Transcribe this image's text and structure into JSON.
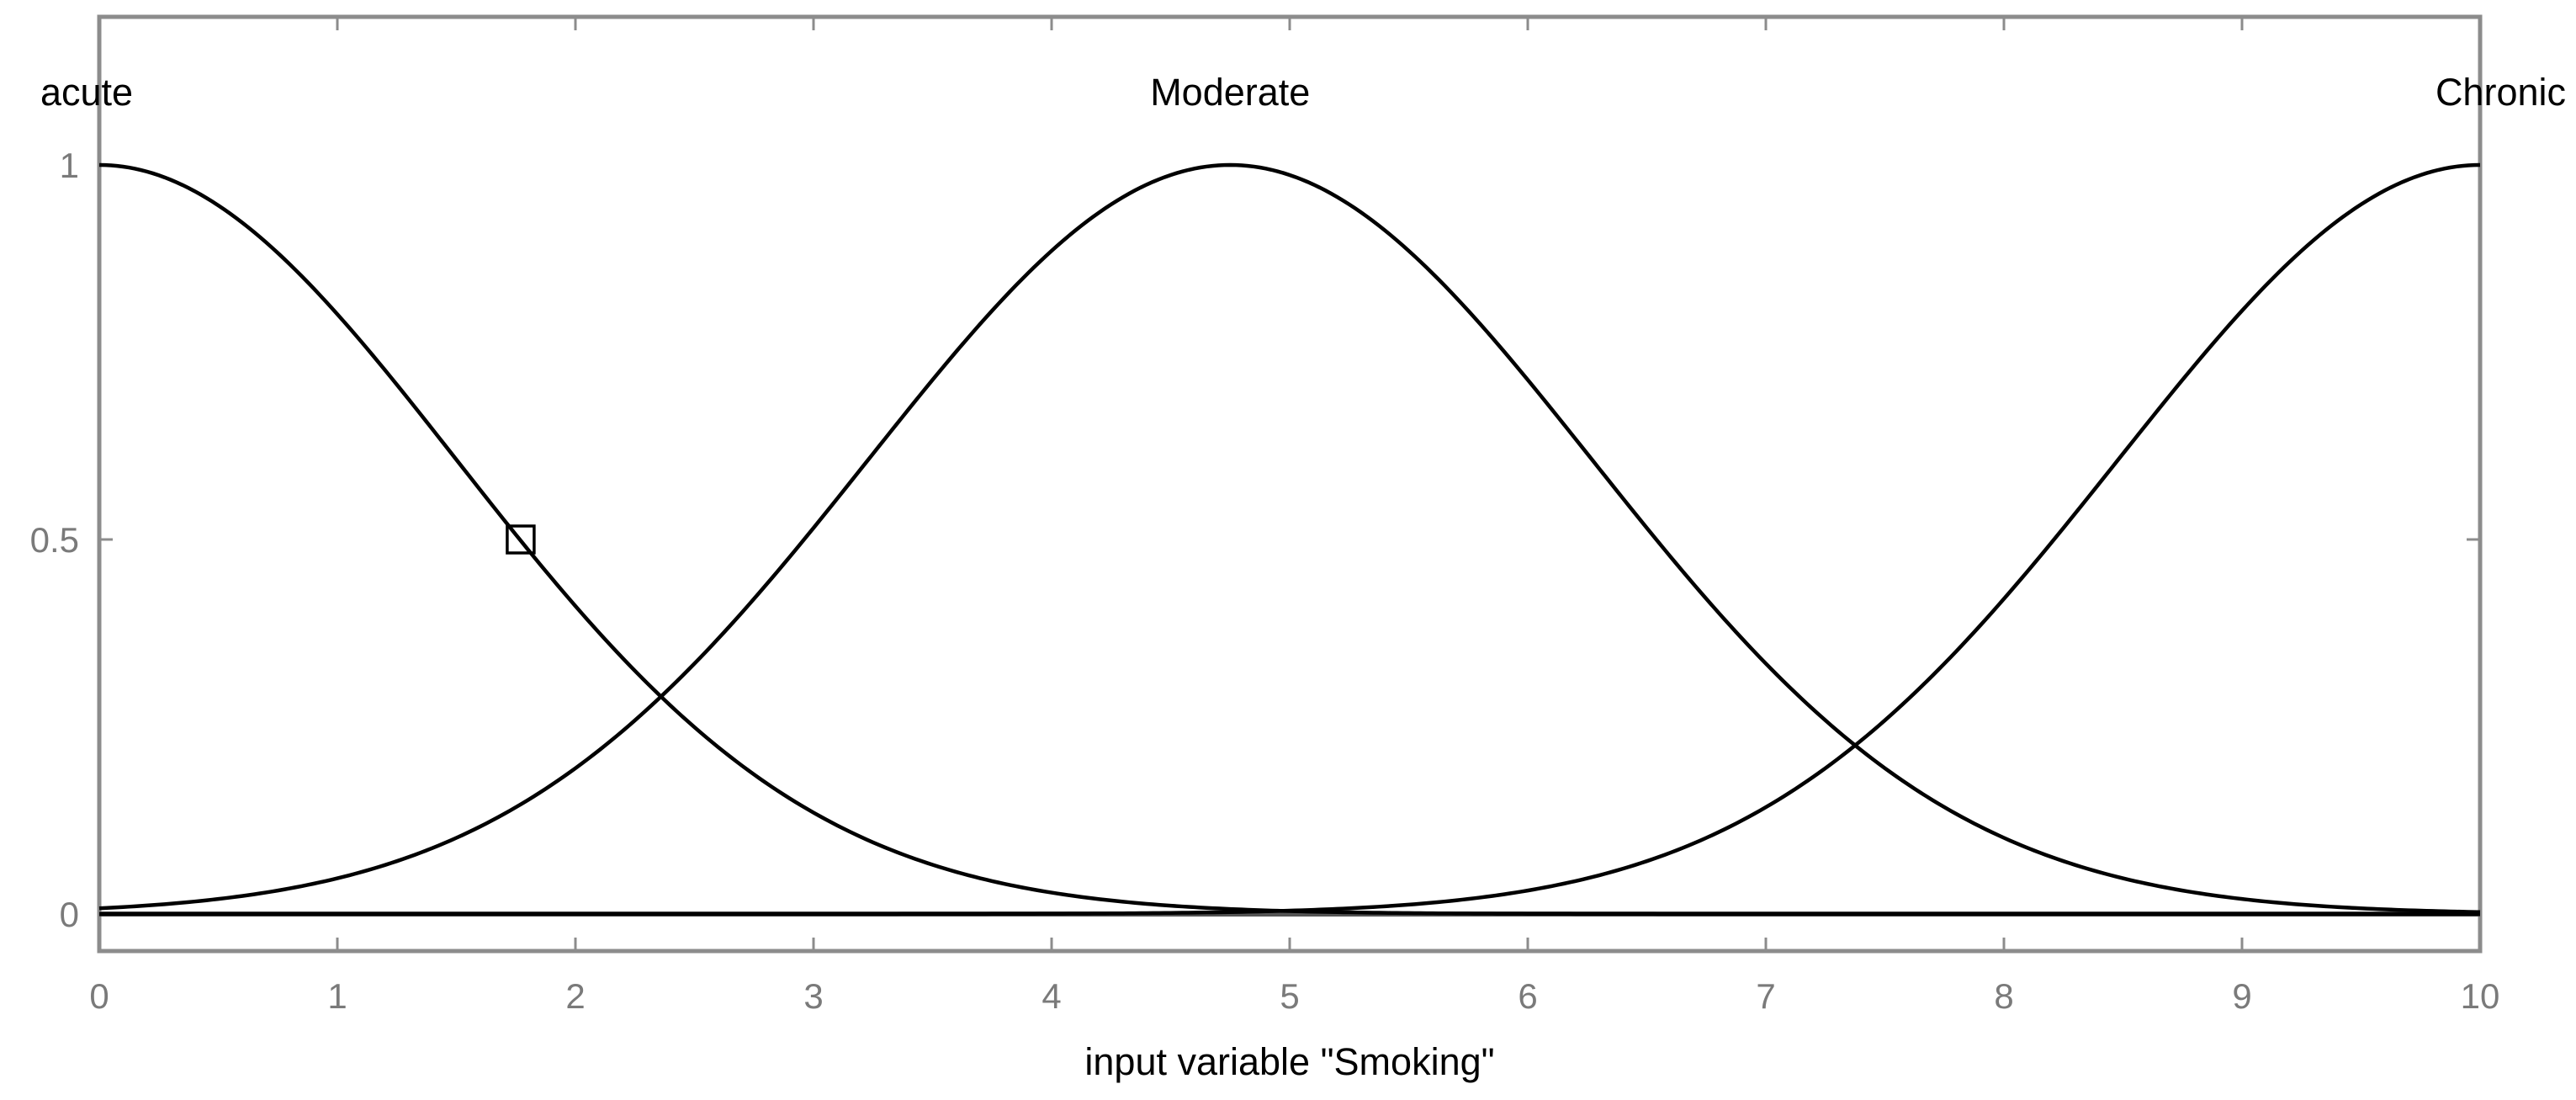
{
  "chart_data": {
    "type": "line",
    "xlabel": "input variable \"Smoking\"",
    "ylabel": "",
    "xlim": [
      0,
      10
    ],
    "ylim": [
      -0.03,
      1.12
    ],
    "x_ticks": [
      "0",
      "1",
      "2",
      "3",
      "4",
      "5",
      "6",
      "7",
      "8",
      "9",
      "10"
    ],
    "y_ticks": [
      "0",
      "0.5",
      "1"
    ],
    "grid": false,
    "series": [
      {
        "name": "acute",
        "function": "gaussian",
        "center": 0,
        "sigma": 1.5,
        "label_x": 0
      },
      {
        "name": "Moderate",
        "function": "gaussian",
        "center": 4.75,
        "sigma": 1.52,
        "label_x": 4.75
      },
      {
        "name": "Chronic",
        "function": "gaussian",
        "center": 10,
        "sigma": 1.52,
        "label_x": 10
      }
    ],
    "marker": {
      "shape": "square",
      "x": 1.77,
      "y": 0.5
    },
    "colors": {
      "curves": "#000000",
      "frame": "#8c8c8c",
      "ticks": "#7a7a7a",
      "background": "#ffffff"
    }
  }
}
